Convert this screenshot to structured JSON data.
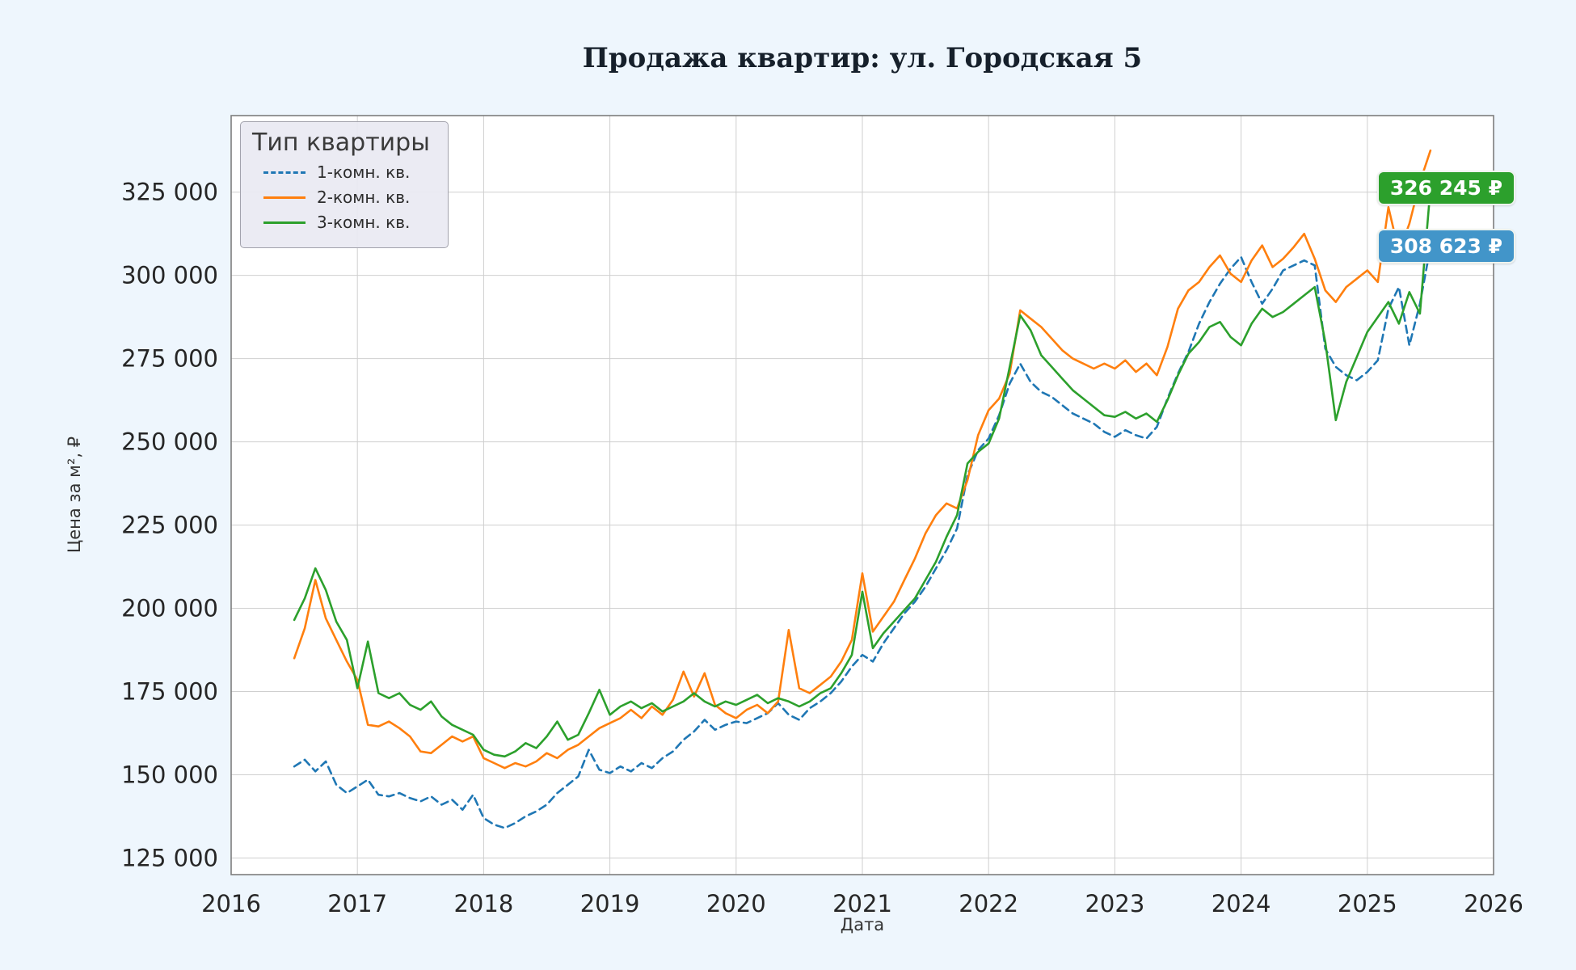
{
  "chart_data": {
    "type": "line",
    "title": "Продажа квартир: ул. Городская 5",
    "xlabel": "Дата",
    "ylabel": "Цена за м², ₽",
    "legend_title": "Тип квартиры",
    "legend_position": "upper left",
    "grid": true,
    "xlim": [
      2016,
      2026
    ],
    "ylim": [
      120000,
      348000
    ],
    "x_ticks": [
      2016,
      2017,
      2018,
      2019,
      2020,
      2021,
      2022,
      2023,
      2024,
      2025,
      2026
    ],
    "y_ticks": [
      125000,
      150000,
      175000,
      200000,
      225000,
      250000,
      275000,
      300000,
      325000
    ],
    "x": [
      2016.5,
      2016.583,
      2016.667,
      2016.75,
      2016.833,
      2016.917,
      2017.0,
      2017.083,
      2017.167,
      2017.25,
      2017.333,
      2017.417,
      2017.5,
      2017.583,
      2017.667,
      2017.75,
      2017.833,
      2017.917,
      2018.0,
      2018.083,
      2018.167,
      2018.25,
      2018.333,
      2018.417,
      2018.5,
      2018.583,
      2018.667,
      2018.75,
      2018.833,
      2018.917,
      2019.0,
      2019.083,
      2019.167,
      2019.25,
      2019.333,
      2019.417,
      2019.5,
      2019.583,
      2019.667,
      2019.75,
      2019.833,
      2019.917,
      2020.0,
      2020.083,
      2020.167,
      2020.25,
      2020.333,
      2020.417,
      2020.5,
      2020.583,
      2020.667,
      2020.75,
      2020.833,
      2020.917,
      2021.0,
      2021.083,
      2021.167,
      2021.25,
      2021.333,
      2021.417,
      2021.5,
      2021.583,
      2021.667,
      2021.75,
      2021.833,
      2021.917,
      2022.0,
      2022.083,
      2022.167,
      2022.25,
      2022.333,
      2022.417,
      2022.5,
      2022.583,
      2022.667,
      2022.75,
      2022.833,
      2022.917,
      2023.0,
      2023.083,
      2023.167,
      2023.25,
      2023.333,
      2023.417,
      2023.5,
      2023.583,
      2023.667,
      2023.75,
      2023.833,
      2023.917,
      2024.0,
      2024.083,
      2024.167,
      2024.25,
      2024.333,
      2024.417,
      2024.5,
      2024.583,
      2024.667,
      2024.75,
      2024.833,
      2024.917,
      2025.0,
      2025.083,
      2025.167,
      2025.25,
      2025.333,
      2025.417,
      2025.5
    ],
    "series": [
      {
        "name": "1-комн. кв.",
        "color": "#1f77b4",
        "dash": "dashed",
        "values": [
          152500,
          154500,
          151000,
          154000,
          147000,
          144500,
          146500,
          148500,
          144000,
          143500,
          144500,
          143000,
          142000,
          143500,
          141000,
          142500,
          139500,
          144000,
          137000,
          135000,
          134000,
          135500,
          137500,
          139000,
          141000,
          144500,
          147000,
          149500,
          157500,
          151500,
          150500,
          152500,
          151000,
          153500,
          152000,
          155000,
          157000,
          160500,
          163000,
          166500,
          163500,
          165000,
          166000,
          165500,
          167000,
          168500,
          171500,
          168000,
          166500,
          170000,
          172000,
          174500,
          178000,
          182500,
          186000,
          184000,
          189500,
          194000,
          198500,
          202000,
          206500,
          212000,
          217500,
          224000,
          240000,
          247500,
          251000,
          258000,
          267500,
          273500,
          268000,
          265000,
          263500,
          261000,
          258500,
          257000,
          255500,
          253000,
          251500,
          253500,
          252000,
          251000,
          254500,
          263000,
          270500,
          277000,
          285500,
          292000,
          297500,
          302000,
          305500,
          298000,
          291500,
          296000,
          301500,
          303000,
          304500,
          303000,
          278000,
          272500,
          270000,
          268500,
          271000,
          274500,
          290000,
          296500,
          279000,
          291500,
          308623
        ]
      },
      {
        "name": "2-комн. кв.",
        "color": "#ff7f0e",
        "dash": "solid",
        "values": [
          185000,
          194000,
          208500,
          197000,
          190500,
          184000,
          178500,
          165000,
          164500,
          166000,
          164000,
          161500,
          157000,
          156500,
          159000,
          161500,
          160000,
          161500,
          155000,
          153500,
          152000,
          153500,
          152500,
          154000,
          156500,
          155000,
          157500,
          159000,
          161500,
          164000,
          165500,
          167000,
          169500,
          167000,
          170500,
          168000,
          172500,
          181000,
          173500,
          180500,
          171000,
          168500,
          167000,
          169500,
          171000,
          168500,
          172000,
          193500,
          176000,
          174500,
          177000,
          179500,
          184000,
          190500,
          210500,
          193000,
          197500,
          202000,
          208500,
          215000,
          222500,
          228000,
          231500,
          230000,
          238500,
          252000,
          259500,
          263000,
          270500,
          289500,
          287000,
          284500,
          281000,
          277500,
          275000,
          273500,
          272000,
          273500,
          272000,
          274500,
          271000,
          273500,
          270000,
          278500,
          290000,
          295500,
          298000,
          302500,
          306000,
          300500,
          298000,
          304500,
          309000,
          302500,
          305000,
          308500,
          312500,
          305000,
          295500,
          292000,
          296500,
          299000,
          301500,
          298000,
          320500,
          307000,
          315500,
          328000,
          337500
        ]
      },
      {
        "name": "3-комн. кв.",
        "color": "#2ca02c",
        "dash": "solid",
        "values": [
          196500,
          203000,
          212000,
          205500,
          196000,
          190500,
          176000,
          190000,
          174500,
          173000,
          174500,
          171000,
          169500,
          172000,
          167500,
          165000,
          163500,
          162000,
          157500,
          156000,
          155500,
          157000,
          159500,
          158000,
          161500,
          166000,
          160500,
          162000,
          168500,
          175500,
          168000,
          170500,
          172000,
          170000,
          171500,
          169000,
          170500,
          172000,
          174500,
          172000,
          170500,
          172000,
          171000,
          172500,
          174000,
          171500,
          173000,
          172000,
          170500,
          172000,
          174500,
          176000,
          180500,
          186000,
          205000,
          188000,
          192500,
          196000,
          199500,
          203000,
          208500,
          214000,
          221500,
          228000,
          243500,
          247000,
          249500,
          257000,
          272500,
          288000,
          283500,
          276000,
          272500,
          269000,
          265500,
          263000,
          260500,
          258000,
          257500,
          259000,
          257000,
          258500,
          256000,
          262500,
          270000,
          276500,
          280000,
          284500,
          286000,
          281500,
          279000,
          285500,
          290000,
          287500,
          289000,
          291500,
          294000,
          296500,
          280000,
          256500,
          268000,
          275500,
          283000,
          287500,
          292000,
          285500,
          295000,
          288500,
          326245
        ]
      }
    ],
    "annotations": [
      {
        "text": "326 245 ₽",
        "value": 326245,
        "series": "3-комн. кв.",
        "color": "#2ca02c"
      },
      {
        "text": "308 623 ₽",
        "value": 308623,
        "series": "1-комн. кв.",
        "color": "#4295c9"
      }
    ]
  }
}
